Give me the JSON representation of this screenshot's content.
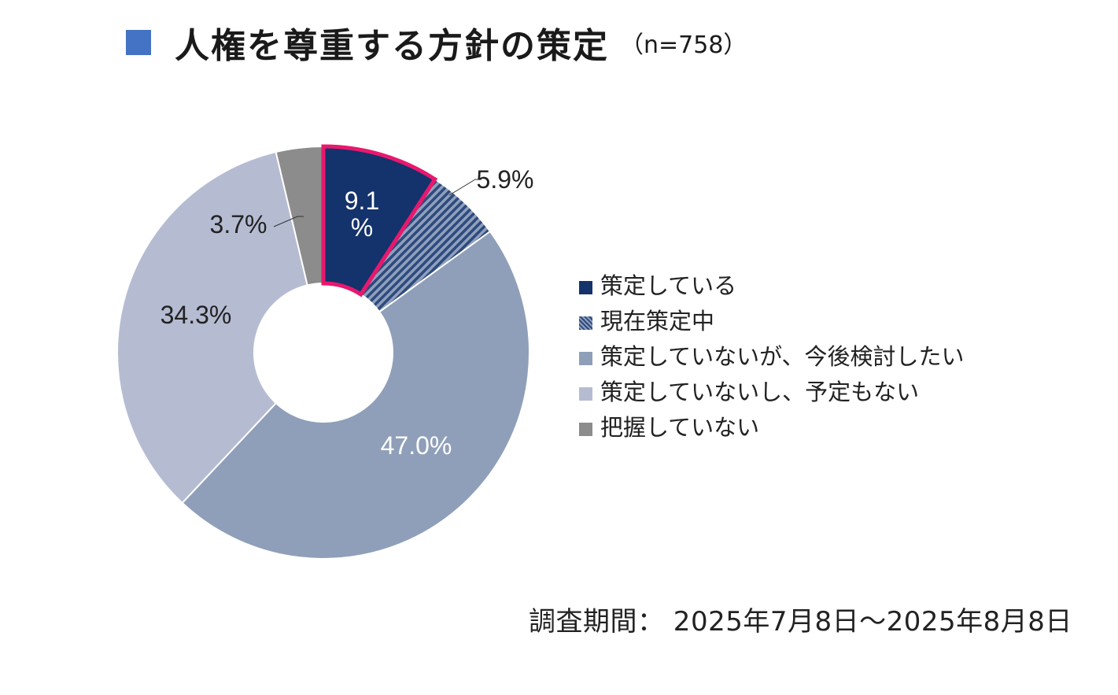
{
  "title": {
    "main": "人権を尊重する方針の策定",
    "sample": "（n=758）"
  },
  "chart_data": {
    "type": "pie",
    "variant": "donut",
    "categories": [
      "策定している",
      "現在策定中",
      "策定していないが、今後検討したい",
      "策定していないし、予定もない",
      "把握していない"
    ],
    "values": [
      9.1,
      5.9,
      47.0,
      34.3,
      3.7
    ],
    "unit": "%",
    "data_labels": [
      "9.1\n%",
      "5.9%",
      "47.0%",
      "34.3%",
      "3.7%"
    ],
    "colors": [
      "#14326b",
      "#8fa0bd",
      "#8f9fb9",
      "#b5bcd2",
      "#8c8c8c"
    ],
    "patterns": [
      "solid",
      "diagonal-hatch",
      "solid",
      "solid",
      "solid"
    ],
    "highlight": "策定している",
    "highlight_color": "#e8186d",
    "legend_position": "right"
  },
  "period": "調査期間： 2025年7月8日～2025年8月8日"
}
